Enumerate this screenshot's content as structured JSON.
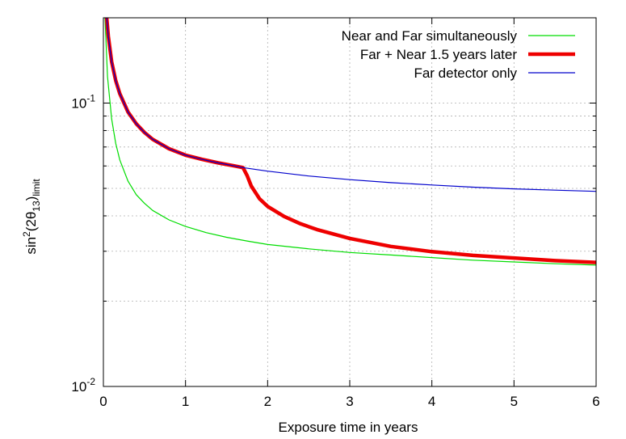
{
  "chart_data": {
    "type": "line",
    "title": "",
    "xlabel": "Exposure time in years",
    "ylabel": "sin^2(2θ13)limit",
    "x_scale": "linear",
    "y_scale": "log",
    "xlim": [
      0,
      6
    ],
    "ylim": [
      0.01,
      0.2
    ],
    "grid": true,
    "legend_position": "top-right",
    "x_ticks": [
      {
        "value": 0,
        "label": "0"
      },
      {
        "value": 1,
        "label": "1"
      },
      {
        "value": 2,
        "label": "2"
      },
      {
        "value": 3,
        "label": "3"
      },
      {
        "value": 4,
        "label": "4"
      },
      {
        "value": 5,
        "label": "5"
      },
      {
        "value": 6,
        "label": "6"
      }
    ],
    "y_major_ticks": [
      {
        "value": 0.01,
        "base": "10",
        "exponent": "-2"
      },
      {
        "value": 0.1,
        "base": "10",
        "exponent": "-1"
      }
    ],
    "series": [
      {
        "name": "Near and Far simultaneously",
        "color": "#00dd00",
        "width": 1.2,
        "x": [
          0.02,
          0.05,
          0.1,
          0.15,
          0.2,
          0.3,
          0.4,
          0.5,
          0.6,
          0.8,
          1.0,
          1.25,
          1.5,
          1.75,
          2.0,
          2.5,
          3.0,
          3.5,
          4.0,
          4.5,
          5.0,
          5.5,
          6.0
        ],
        "y": [
          0.2,
          0.124,
          0.088,
          0.072,
          0.063,
          0.053,
          0.0475,
          0.0443,
          0.0418,
          0.0387,
          0.0367,
          0.0349,
          0.0336,
          0.0326,
          0.0317,
          0.0306,
          0.0297,
          0.0291,
          0.0285,
          0.0279,
          0.0275,
          0.0271,
          0.0268
        ]
      },
      {
        "name": "Far + Near 1.5 years later",
        "color": "#ee0000",
        "width": 4.5,
        "x": [
          0.04,
          0.06,
          0.1,
          0.15,
          0.2,
          0.3,
          0.4,
          0.5,
          0.6,
          0.8,
          1.0,
          1.2,
          1.4,
          1.6,
          1.7,
          1.75,
          1.8,
          1.9,
          2.0,
          2.2,
          2.4,
          2.6,
          3.0,
          3.5,
          4.0,
          4.5,
          5.0,
          5.5,
          6.0
        ],
        "y": [
          0.2,
          0.172,
          0.14,
          0.12,
          0.108,
          0.093,
          0.0845,
          0.0788,
          0.0745,
          0.069,
          0.0655,
          0.0633,
          0.0615,
          0.06,
          0.0592,
          0.0555,
          0.051,
          0.046,
          0.0432,
          0.0398,
          0.0375,
          0.0358,
          0.0333,
          0.0312,
          0.0299,
          0.029,
          0.0284,
          0.0278,
          0.0274
        ]
      },
      {
        "name": "Far detector only",
        "color": "#0000cc",
        "width": 1.2,
        "x": [
          0.04,
          0.06,
          0.1,
          0.15,
          0.2,
          0.3,
          0.4,
          0.5,
          0.6,
          0.8,
          1.0,
          1.2,
          1.4,
          1.6,
          1.7,
          2.0,
          2.5,
          3.0,
          3.5,
          4.0,
          4.5,
          5.0,
          5.5,
          6.0
        ],
        "y": [
          0.2,
          0.172,
          0.14,
          0.12,
          0.108,
          0.093,
          0.0845,
          0.0788,
          0.0745,
          0.069,
          0.0655,
          0.0633,
          0.0615,
          0.06,
          0.0592,
          0.0575,
          0.0553,
          0.0537,
          0.0524,
          0.0514,
          0.0505,
          0.0498,
          0.0493,
          0.0488
        ]
      }
    ]
  }
}
